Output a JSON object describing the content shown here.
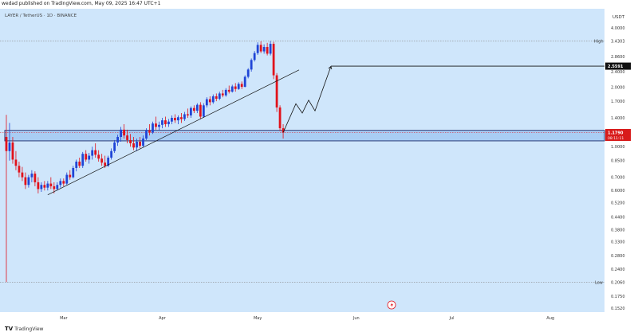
{
  "header": {
    "text": "wedad published on TradingView.com, May 09, 2025 16:47 UTC+1"
  },
  "legend": {
    "text": "LAYER / TetherUS · 1D · BINANCE"
  },
  "footer": {
    "brand": "TradingView",
    "logo": "TV"
  },
  "colors": {
    "background": "#cfe6fb",
    "up": "#1f45d6",
    "down": "#e1121b",
    "zone": "#a9cdf4",
    "price_label": "#d81b1b",
    "axis_text": "#333333"
  },
  "chart_data": {
    "type": "candlestick",
    "symbol": "LAYER / TetherUS",
    "interval": "1D",
    "exchange": "BINANCE",
    "currency": "USDT",
    "y_scale": "log",
    "ylim": [
      0.152,
      4.0
    ],
    "xlim": [
      "2025-02-09",
      "2025-08-18"
    ],
    "y_ticks": [
      "4.0000",
      "3.4303",
      "2.8600",
      "2.4000",
      "2.0000",
      "1.7000",
      "1.4000",
      "1.1790",
      "1.0000",
      "0.8500",
      "0.7000",
      "0.6000",
      "0.5200",
      "0.4400",
      "0.3800",
      "0.3300",
      "0.2800",
      "0.2400",
      "0.2060",
      "0.1750",
      "0.1520"
    ],
    "x_ticks": [
      {
        "label": "Mar",
        "date": "2025-03-01"
      },
      {
        "label": "Apr",
        "date": "2025-04-01"
      },
      {
        "label": "May",
        "date": "2025-05-01"
      },
      {
        "label": "Jun",
        "date": "2025-06-01"
      },
      {
        "label": "Jul",
        "date": "2025-07-01"
      },
      {
        "label": "Aug",
        "date": "2025-08-01"
      }
    ],
    "high": {
      "label": "High",
      "value": "3.4303"
    },
    "low": {
      "label": "Low",
      "value": "0.2060"
    },
    "current_price": {
      "value": "1.1790",
      "countdown": "08:11:11"
    },
    "target_price": {
      "value": "2.5591"
    },
    "demand_zone": {
      "top": 1.21,
      "bottom": 1.07,
      "start": "2025-02-11"
    },
    "trendline": {
      "start": {
        "date": "2025-02-24",
        "price": 0.57
      },
      "end": {
        "date": "2025-05-14",
        "price": 2.45
      }
    },
    "projection": [
      {
        "date": "2025-05-09",
        "price": 1.18
      },
      {
        "date": "2025-05-13",
        "price": 1.65
      },
      {
        "date": "2025-05-15",
        "price": 1.48
      },
      {
        "date": "2025-05-17",
        "price": 1.72
      },
      {
        "date": "2025-05-19",
        "price": 1.52
      },
      {
        "date": "2025-05-24",
        "price": 2.55
      }
    ],
    "candles": [
      {
        "date": "2025-02-11",
        "open": 1.12,
        "high": 1.45,
        "low": 0.206,
        "close": 0.95
      },
      {
        "date": "2025-02-12",
        "open": 0.95,
        "high": 1.32,
        "low": 0.85,
        "close": 1.05
      },
      {
        "date": "2025-02-13",
        "open": 1.05,
        "high": 1.12,
        "low": 0.82,
        "close": 0.86
      },
      {
        "date": "2025-02-14",
        "open": 0.86,
        "high": 0.95,
        "low": 0.76,
        "close": 0.8
      },
      {
        "date": "2025-02-15",
        "open": 0.8,
        "high": 0.84,
        "low": 0.7,
        "close": 0.74
      },
      {
        "date": "2025-02-16",
        "open": 0.74,
        "high": 0.79,
        "low": 0.67,
        "close": 0.7
      },
      {
        "date": "2025-02-17",
        "open": 0.7,
        "high": 0.74,
        "low": 0.61,
        "close": 0.64
      },
      {
        "date": "2025-02-18",
        "open": 0.64,
        "high": 0.72,
        "low": 0.62,
        "close": 0.7
      },
      {
        "date": "2025-02-19",
        "open": 0.7,
        "high": 0.76,
        "low": 0.66,
        "close": 0.73
      },
      {
        "date": "2025-02-20",
        "open": 0.73,
        "high": 0.75,
        "low": 0.63,
        "close": 0.66
      },
      {
        "date": "2025-02-21",
        "open": 0.66,
        "high": 0.7,
        "low": 0.58,
        "close": 0.61
      },
      {
        "date": "2025-02-22",
        "open": 0.61,
        "high": 0.66,
        "low": 0.59,
        "close": 0.64
      },
      {
        "date": "2025-02-23",
        "open": 0.64,
        "high": 0.67,
        "low": 0.6,
        "close": 0.62
      },
      {
        "date": "2025-02-24",
        "open": 0.62,
        "high": 0.67,
        "low": 0.6,
        "close": 0.65
      },
      {
        "date": "2025-02-25",
        "open": 0.65,
        "high": 0.7,
        "low": 0.61,
        "close": 0.63
      },
      {
        "date": "2025-02-26",
        "open": 0.63,
        "high": 0.66,
        "low": 0.58,
        "close": 0.61
      },
      {
        "date": "2025-02-27",
        "open": 0.61,
        "high": 0.66,
        "low": 0.6,
        "close": 0.64
      },
      {
        "date": "2025-02-28",
        "open": 0.64,
        "high": 0.69,
        "low": 0.62,
        "close": 0.67
      },
      {
        "date": "2025-03-01",
        "open": 0.67,
        "high": 0.69,
        "low": 0.63,
        "close": 0.65
      },
      {
        "date": "2025-03-02",
        "open": 0.65,
        "high": 0.74,
        "low": 0.64,
        "close": 0.72
      },
      {
        "date": "2025-03-03",
        "open": 0.72,
        "high": 0.76,
        "low": 0.68,
        "close": 0.7
      },
      {
        "date": "2025-03-04",
        "open": 0.7,
        "high": 0.8,
        "low": 0.69,
        "close": 0.78
      },
      {
        "date": "2025-03-05",
        "open": 0.78,
        "high": 0.86,
        "low": 0.75,
        "close": 0.84
      },
      {
        "date": "2025-03-06",
        "open": 0.84,
        "high": 0.88,
        "low": 0.78,
        "close": 0.8
      },
      {
        "date": "2025-03-07",
        "open": 0.8,
        "high": 0.94,
        "low": 0.78,
        "close": 0.92
      },
      {
        "date": "2025-03-08",
        "open": 0.92,
        "high": 0.96,
        "low": 0.84,
        "close": 0.86
      },
      {
        "date": "2025-03-09",
        "open": 0.86,
        "high": 0.93,
        "low": 0.82,
        "close": 0.9
      },
      {
        "date": "2025-03-10",
        "open": 0.9,
        "high": 1.0,
        "low": 0.86,
        "close": 0.96
      },
      {
        "date": "2025-03-11",
        "open": 0.96,
        "high": 1.04,
        "low": 0.88,
        "close": 0.91
      },
      {
        "date": "2025-03-12",
        "open": 0.91,
        "high": 0.96,
        "low": 0.84,
        "close": 0.87
      },
      {
        "date": "2025-03-13",
        "open": 0.87,
        "high": 0.92,
        "low": 0.8,
        "close": 0.83
      },
      {
        "date": "2025-03-14",
        "open": 0.83,
        "high": 0.9,
        "low": 0.78,
        "close": 0.8
      },
      {
        "date": "2025-03-15",
        "open": 0.8,
        "high": 0.9,
        "low": 0.79,
        "close": 0.88
      },
      {
        "date": "2025-03-16",
        "open": 0.88,
        "high": 0.98,
        "low": 0.86,
        "close": 0.95
      },
      {
        "date": "2025-03-17",
        "open": 0.95,
        "high": 1.08,
        "low": 0.93,
        "close": 1.05
      },
      {
        "date": "2025-03-18",
        "open": 1.05,
        "high": 1.15,
        "low": 1.01,
        "close": 1.12
      },
      {
        "date": "2025-03-19",
        "open": 1.12,
        "high": 1.26,
        "low": 1.06,
        "close": 1.22
      },
      {
        "date": "2025-03-20",
        "open": 1.22,
        "high": 1.3,
        "low": 1.1,
        "close": 1.14
      },
      {
        "date": "2025-03-21",
        "open": 1.14,
        "high": 1.22,
        "low": 1.04,
        "close": 1.08
      },
      {
        "date": "2025-03-22",
        "open": 1.08,
        "high": 1.16,
        "low": 1.0,
        "close": 1.04
      },
      {
        "date": "2025-03-23",
        "open": 1.04,
        "high": 1.12,
        "low": 0.96,
        "close": 0.99
      },
      {
        "date": "2025-03-24",
        "open": 0.99,
        "high": 1.1,
        "low": 0.95,
        "close": 1.06
      },
      {
        "date": "2025-03-25",
        "open": 1.06,
        "high": 1.12,
        "low": 0.98,
        "close": 1.01
      },
      {
        "date": "2025-03-26",
        "open": 1.01,
        "high": 1.14,
        "low": 0.99,
        "close": 1.1
      },
      {
        "date": "2025-03-27",
        "open": 1.1,
        "high": 1.24,
        "low": 1.08,
        "close": 1.21
      },
      {
        "date": "2025-03-28",
        "open": 1.21,
        "high": 1.3,
        "low": 1.14,
        "close": 1.18
      },
      {
        "date": "2025-03-29",
        "open": 1.18,
        "high": 1.34,
        "low": 1.16,
        "close": 1.31
      },
      {
        "date": "2025-03-30",
        "open": 1.31,
        "high": 1.42,
        "low": 1.22,
        "close": 1.26
      },
      {
        "date": "2025-03-31",
        "open": 1.26,
        "high": 1.34,
        "low": 1.21,
        "close": 1.29
      },
      {
        "date": "2025-04-01",
        "open": 1.29,
        "high": 1.4,
        "low": 1.24,
        "close": 1.36
      },
      {
        "date": "2025-04-02",
        "open": 1.36,
        "high": 1.42,
        "low": 1.26,
        "close": 1.3
      },
      {
        "date": "2025-04-03",
        "open": 1.3,
        "high": 1.38,
        "low": 1.26,
        "close": 1.34
      },
      {
        "date": "2025-04-04",
        "open": 1.34,
        "high": 1.44,
        "low": 1.3,
        "close": 1.4
      },
      {
        "date": "2025-04-05",
        "open": 1.4,
        "high": 1.46,
        "low": 1.32,
        "close": 1.36
      },
      {
        "date": "2025-04-06",
        "open": 1.36,
        "high": 1.44,
        "low": 1.3,
        "close": 1.41
      },
      {
        "date": "2025-04-07",
        "open": 1.41,
        "high": 1.48,
        "low": 1.32,
        "close": 1.38
      },
      {
        "date": "2025-04-08",
        "open": 1.38,
        "high": 1.5,
        "low": 1.35,
        "close": 1.46
      },
      {
        "date": "2025-04-09",
        "open": 1.46,
        "high": 1.56,
        "low": 1.4,
        "close": 1.44
      },
      {
        "date": "2025-04-10",
        "open": 1.44,
        "high": 1.6,
        "low": 1.4,
        "close": 1.57
      },
      {
        "date": "2025-04-11",
        "open": 1.57,
        "high": 1.62,
        "low": 1.48,
        "close": 1.52
      },
      {
        "date": "2025-04-12",
        "open": 1.52,
        "high": 1.66,
        "low": 1.48,
        "close": 1.63
      },
      {
        "date": "2025-04-13",
        "open": 1.63,
        "high": 1.68,
        "low": 1.38,
        "close": 1.42
      },
      {
        "date": "2025-04-14",
        "open": 1.42,
        "high": 1.66,
        "low": 1.4,
        "close": 1.62
      },
      {
        "date": "2025-04-15",
        "open": 1.62,
        "high": 1.78,
        "low": 1.58,
        "close": 1.74
      },
      {
        "date": "2025-04-16",
        "open": 1.74,
        "high": 1.8,
        "low": 1.62,
        "close": 1.68
      },
      {
        "date": "2025-04-17",
        "open": 1.68,
        "high": 1.84,
        "low": 1.65,
        "close": 1.8
      },
      {
        "date": "2025-04-18",
        "open": 1.8,
        "high": 1.86,
        "low": 1.7,
        "close": 1.75
      },
      {
        "date": "2025-04-19",
        "open": 1.75,
        "high": 1.9,
        "low": 1.72,
        "close": 1.86
      },
      {
        "date": "2025-04-20",
        "open": 1.86,
        "high": 1.94,
        "low": 1.78,
        "close": 1.82
      },
      {
        "date": "2025-04-21",
        "open": 1.82,
        "high": 1.98,
        "low": 1.79,
        "close": 1.94
      },
      {
        "date": "2025-04-22",
        "open": 1.94,
        "high": 2.04,
        "low": 1.86,
        "close": 1.9
      },
      {
        "date": "2025-04-23",
        "open": 1.9,
        "high": 2.06,
        "low": 1.88,
        "close": 2.02
      },
      {
        "date": "2025-04-24",
        "open": 2.02,
        "high": 2.1,
        "low": 1.9,
        "close": 1.96
      },
      {
        "date": "2025-04-25",
        "open": 1.96,
        "high": 2.12,
        "low": 1.94,
        "close": 2.08
      },
      {
        "date": "2025-04-26",
        "open": 2.08,
        "high": 2.14,
        "low": 1.96,
        "close": 2.01
      },
      {
        "date": "2025-04-27",
        "open": 2.01,
        "high": 2.3,
        "low": 2.0,
        "close": 2.26
      },
      {
        "date": "2025-04-28",
        "open": 2.26,
        "high": 2.5,
        "low": 2.22,
        "close": 2.46
      },
      {
        "date": "2025-04-29",
        "open": 2.46,
        "high": 2.8,
        "low": 2.4,
        "close": 2.75
      },
      {
        "date": "2025-04-30",
        "open": 2.75,
        "high": 3.05,
        "low": 2.7,
        "close": 2.98
      },
      {
        "date": "2025-05-01",
        "open": 2.98,
        "high": 3.38,
        "low": 2.92,
        "close": 3.28
      },
      {
        "date": "2025-05-02",
        "open": 3.28,
        "high": 3.42,
        "low": 2.98,
        "close": 3.04
      },
      {
        "date": "2025-05-03",
        "open": 3.04,
        "high": 3.3,
        "low": 2.96,
        "close": 3.2
      },
      {
        "date": "2025-05-04",
        "open": 3.2,
        "high": 3.36,
        "low": 2.9,
        "close": 2.96
      },
      {
        "date": "2025-05-05",
        "open": 2.96,
        "high": 3.4303,
        "low": 2.9,
        "close": 3.32
      },
      {
        "date": "2025-05-06",
        "open": 3.32,
        "high": 3.4,
        "low": 2.2,
        "close": 2.3
      },
      {
        "date": "2025-05-07",
        "open": 2.3,
        "high": 2.36,
        "low": 1.5,
        "close": 1.58
      },
      {
        "date": "2025-05-08",
        "open": 1.58,
        "high": 1.62,
        "low": 1.2,
        "close": 1.24
      },
      {
        "date": "2025-05-09",
        "open": 1.24,
        "high": 1.3,
        "low": 1.1,
        "close": 1.179
      }
    ]
  }
}
